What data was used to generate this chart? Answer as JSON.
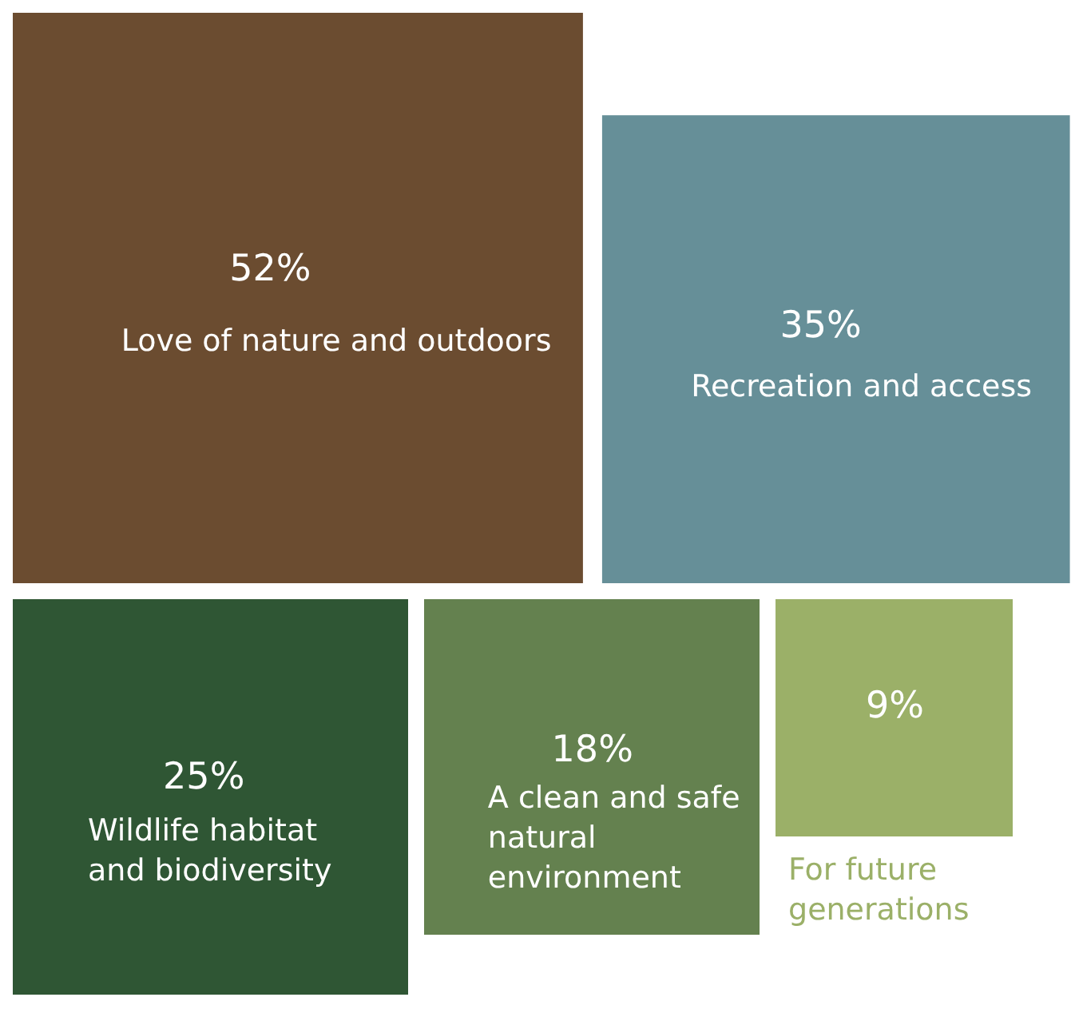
{
  "chart_data": {
    "type": "other",
    "categories": [
      "Love of nature and outdoors",
      "Recreation and access",
      "Wildlife habitat and biodiversity",
      "A clean and safe natural environment",
      "For future generations"
    ],
    "values": [
      52,
      35,
      25,
      18,
      9
    ],
    "value_labels": [
      "52%",
      "35%",
      "25%",
      "18%",
      "9%"
    ],
    "colors": [
      "#6b4c30",
      "#668f98",
      "#2f5634",
      "#64814f",
      "#9bb068"
    ]
  }
}
